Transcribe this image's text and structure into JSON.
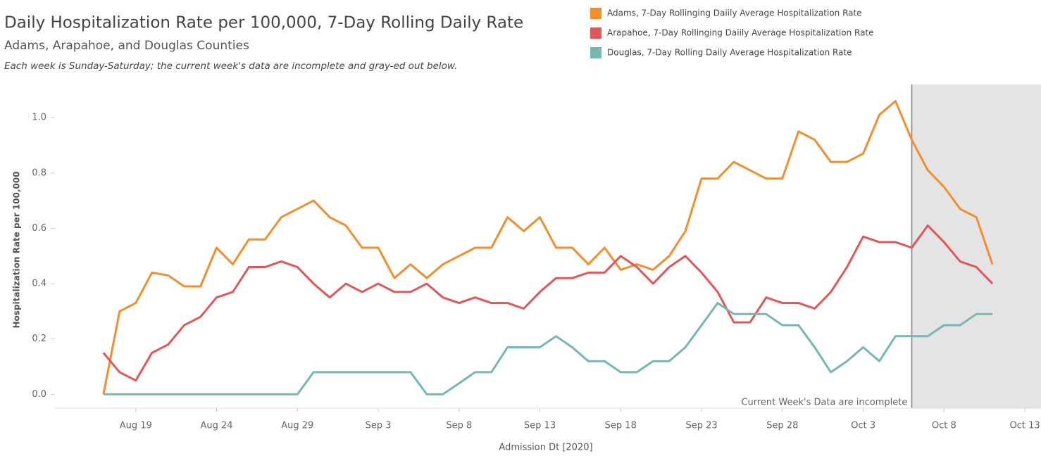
{
  "chart_data": {
    "type": "line",
    "title": "Daily Hospitalization Rate per 100,000, 7-Day Rolling Daily Rate",
    "subtitle": "Adams, Arapahoe, and Douglas Counties",
    "note": "Each week is Sunday-Saturday; the current week's data are incomplete and gray-ed out below.",
    "annotation": "Current Week's Data are incomplete",
    "shaded_from": "2020-10-06",
    "x_label": "Admission Dt [2020]",
    "y_label": "Hospitalization Rate per 100,000",
    "x": [
      "2020-08-17",
      "2020-08-18",
      "2020-08-19",
      "2020-08-20",
      "2020-08-21",
      "2020-08-22",
      "2020-08-23",
      "2020-08-24",
      "2020-08-25",
      "2020-08-26",
      "2020-08-27",
      "2020-08-28",
      "2020-08-29",
      "2020-08-30",
      "2020-08-31",
      "2020-09-01",
      "2020-09-02",
      "2020-09-03",
      "2020-09-04",
      "2020-09-05",
      "2020-09-06",
      "2020-09-07",
      "2020-09-08",
      "2020-09-09",
      "2020-09-10",
      "2020-09-11",
      "2020-09-12",
      "2020-09-13",
      "2020-09-14",
      "2020-09-15",
      "2020-09-16",
      "2020-09-17",
      "2020-09-18",
      "2020-09-19",
      "2020-09-20",
      "2020-09-21",
      "2020-09-22",
      "2020-09-23",
      "2020-09-24",
      "2020-09-25",
      "2020-09-26",
      "2020-09-27",
      "2020-09-28",
      "2020-09-29",
      "2020-09-30",
      "2020-10-01",
      "2020-10-02",
      "2020-10-03",
      "2020-10-04",
      "2020-10-05",
      "2020-10-06",
      "2020-10-07",
      "2020-10-08",
      "2020-10-09",
      "2020-10-10",
      "2020-10-11"
    ],
    "series": [
      {
        "name": "Adams, 7-Day Rollinging Daiily Average Hospitalization Rate",
        "color": "#f28e2b",
        "values": [
          0.0,
          0.3,
          0.33,
          0.44,
          0.43,
          0.39,
          0.39,
          0.53,
          0.47,
          0.56,
          0.56,
          0.64,
          0.67,
          0.7,
          0.64,
          0.61,
          0.53,
          0.53,
          0.42,
          0.47,
          0.42,
          0.47,
          0.5,
          0.53,
          0.53,
          0.64,
          0.59,
          0.64,
          0.53,
          0.53,
          0.47,
          0.53,
          0.45,
          0.47,
          0.45,
          0.5,
          0.59,
          0.78,
          0.78,
          0.84,
          0.81,
          0.78,
          0.78,
          0.95,
          0.92,
          0.84,
          0.84,
          0.87,
          1.01,
          1.06,
          0.92,
          0.81,
          0.75,
          0.67,
          0.64,
          0.47
        ]
      },
      {
        "name": "Arapahoe, 7-Day Rollinging Daiily Average Hospitalization Rate",
        "color": "#e15759",
        "values": [
          0.15,
          0.08,
          0.05,
          0.15,
          0.18,
          0.25,
          0.28,
          0.35,
          0.37,
          0.46,
          0.46,
          0.48,
          0.46,
          0.4,
          0.35,
          0.4,
          0.37,
          0.4,
          0.37,
          0.37,
          0.4,
          0.35,
          0.33,
          0.35,
          0.33,
          0.33,
          0.31,
          0.37,
          0.42,
          0.42,
          0.44,
          0.44,
          0.5,
          0.46,
          0.4,
          0.46,
          0.5,
          0.44,
          0.37,
          0.26,
          0.26,
          0.35,
          0.33,
          0.33,
          0.31,
          0.37,
          0.46,
          0.57,
          0.55,
          0.55,
          0.53,
          0.61,
          0.55,
          0.48,
          0.46,
          0.4
        ]
      },
      {
        "name": "Douglas, 7-Day Rolling Daily Average Hospitalization Rate",
        "color": "#76b7b2",
        "values": [
          0,
          0,
          0,
          0,
          0,
          0,
          0,
          0,
          0,
          0,
          0,
          0,
          0,
          0.08,
          0.08,
          0.08,
          0.08,
          0.08,
          0.08,
          0.08,
          0,
          0,
          0.04,
          0.08,
          0.08,
          0.17,
          0.17,
          0.17,
          0.21,
          0.17,
          0.12,
          0.12,
          0.08,
          0.08,
          0.12,
          0.12,
          0.17,
          0.25,
          0.33,
          0.29,
          0.29,
          0.29,
          0.25,
          0.25,
          0.17,
          0.08,
          0.12,
          0.17,
          0.12,
          0.21,
          0.21,
          0.21,
          0.25,
          0.25,
          0.29,
          0.29
        ]
      }
    ],
    "xlim": [
      "2020-08-14",
      "2020-10-14"
    ],
    "xticks": [
      {
        "value": "2020-08-19",
        "label": "Aug 19"
      },
      {
        "value": "2020-08-24",
        "label": "Aug 24"
      },
      {
        "value": "2020-08-29",
        "label": "Aug 29"
      },
      {
        "value": "2020-09-03",
        "label": "Sep 3"
      },
      {
        "value": "2020-09-08",
        "label": "Sep 8"
      },
      {
        "value": "2020-09-13",
        "label": "Sep 13"
      },
      {
        "value": "2020-09-18",
        "label": "Sep 18"
      },
      {
        "value": "2020-09-23",
        "label": "Sep 23"
      },
      {
        "value": "2020-09-28",
        "label": "Sep 28"
      },
      {
        "value": "2020-10-03",
        "label": "Oct 3"
      },
      {
        "value": "2020-10-08",
        "label": "Oct 8"
      },
      {
        "value": "2020-10-13",
        "label": "Oct 13"
      }
    ],
    "ylim": [
      -0.05,
      1.12
    ],
    "yticks": [
      {
        "value": 0,
        "label": "0.0"
      },
      {
        "value": 0.2,
        "label": "0.2"
      },
      {
        "value": 0.4,
        "label": "0.4"
      },
      {
        "value": 0.6,
        "label": "0.6"
      },
      {
        "value": 0.8,
        "label": "0.8"
      },
      {
        "value": 1,
        "label": "1.0"
      }
    ]
  }
}
